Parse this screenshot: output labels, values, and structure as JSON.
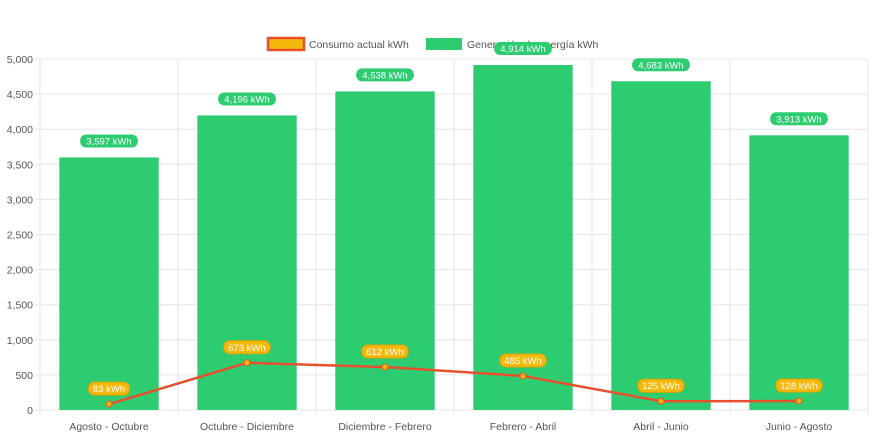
{
  "chart_data": {
    "type": "bar",
    "categories": [
      "Agosto - Octubre",
      "Octubre - Diciembre",
      "Diciembre - Febrero",
      "Febrero - Abril",
      "Abril - Junio",
      "Junio - Agosto"
    ],
    "series": [
      {
        "name": "Consumo actual kWh",
        "type": "line",
        "color": "#e6502e",
        "label_color": "#f5b80c",
        "values": [
          83,
          673,
          612,
          485,
          125,
          128
        ],
        "labels": [
          "83 kWh",
          "673 kWh",
          "612 kWh",
          "485 kWh",
          "125 kWh",
          "128 kWh"
        ]
      },
      {
        "name": "Generación de energía kWh",
        "type": "bar",
        "color": "#2ecc71",
        "values": [
          3597,
          4196,
          4538,
          4914,
          4683,
          3913
        ],
        "labels": [
          "3,597 kWh",
          "4,196 kWh",
          "4,538 kWh",
          "4,914 kWh",
          "4,683 kWh",
          "3,913 kWh"
        ]
      }
    ],
    "ylim": [
      0,
      5000
    ],
    "yticks": [
      0,
      500,
      1000,
      1500,
      2000,
      2500,
      3000,
      3500,
      4000,
      4500,
      5000
    ],
    "ytick_labels": [
      "0",
      "500",
      "1,000",
      "1,500",
      "2,000",
      "2,500",
      "3,000",
      "3,500",
      "4,000",
      "4,500",
      "5,000"
    ],
    "grid": true,
    "legend_position": "top-center",
    "title": "",
    "xlabel": "",
    "ylabel": ""
  }
}
